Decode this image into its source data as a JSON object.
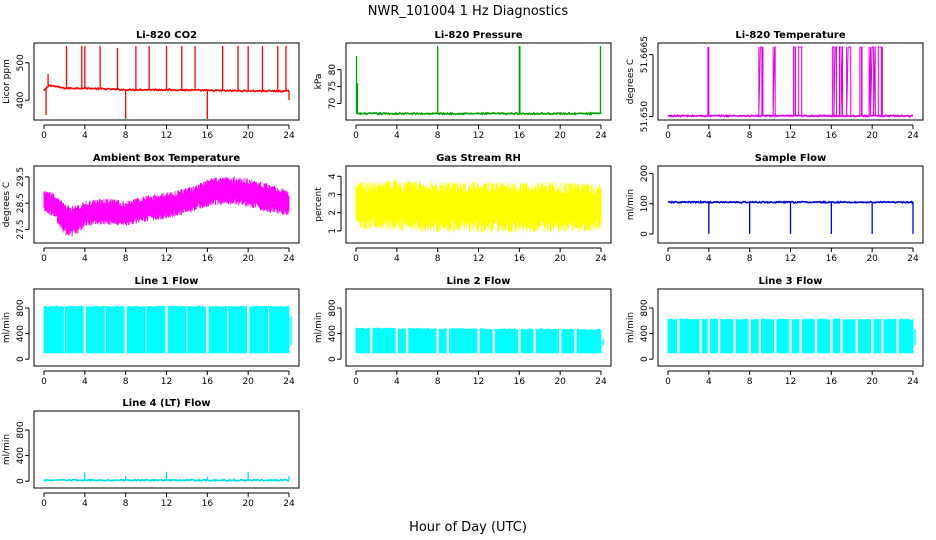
{
  "title": "NWR_101004  1 Hz Diagnostics",
  "x_axis_title": "Hour of Day (UTC)",
  "chart_data": [
    {
      "type": "line",
      "title": "Li-820 CO2",
      "ylabel": "Licor ppm",
      "color": "#ff0000",
      "xlim": [
        0,
        24
      ],
      "ylim": [
        355,
        545
      ],
      "xticks": [
        "0",
        "4",
        "8",
        "12",
        "16",
        "20",
        "24"
      ],
      "yticks": [
        400,
        500
      ],
      "ytick_labels": [
        "400",
        "500"
      ],
      "base": [
        [
          0,
          425
        ],
        [
          0.5,
          440
        ],
        [
          2,
          432
        ],
        [
          4,
          432
        ],
        [
          8,
          428
        ],
        [
          12,
          428
        ],
        [
          16,
          426
        ],
        [
          20,
          425
        ],
        [
          24,
          424
        ]
      ],
      "spikes": [
        [
          0.2,
          360
        ],
        [
          0.4,
          470
        ],
        [
          2.2,
          545
        ],
        [
          3.7,
          545
        ],
        [
          4.0,
          545
        ],
        [
          5.5,
          545
        ],
        [
          7.2,
          540
        ],
        [
          8.0,
          350
        ],
        [
          9.0,
          545
        ],
        [
          10.3,
          545
        ],
        [
          12.0,
          545
        ],
        [
          13.5,
          545
        ],
        [
          14.8,
          545
        ],
        [
          16.0,
          345
        ],
        [
          17.5,
          545
        ],
        [
          19.0,
          545
        ],
        [
          20.0,
          545
        ],
        [
          21.4,
          545
        ],
        [
          22.9,
          545
        ],
        [
          23.7,
          545
        ],
        [
          24.0,
          400
        ]
      ]
    },
    {
      "type": "line",
      "title": "Li-820 Pressure",
      "ylabel": "kPa",
      "color": "#00a000",
      "xlim": [
        0,
        24
      ],
      "ylim": [
        66,
        87
      ],
      "xticks": [
        "0",
        "4",
        "8",
        "12",
        "16",
        "20",
        "24"
      ],
      "yticks": [
        70,
        75,
        80
      ],
      "ytick_labels": [
        "70",
        "75",
        "80"
      ],
      "base": [
        [
          0,
          67
        ],
        [
          24,
          67
        ]
      ],
      "spikes": [
        [
          0.05,
          84
        ],
        [
          0.15,
          76
        ],
        [
          8.0,
          87
        ],
        [
          16.0,
          87
        ],
        [
          16.05,
          87
        ],
        [
          23.95,
          87
        ]
      ]
    },
    {
      "type": "line",
      "title": "Li-820 Temperature",
      "ylabel": "degrees C",
      "color": "#e000e0",
      "xlim": [
        0,
        24
      ],
      "ylim": [
        51.6499,
        51.6688
      ],
      "xticks": [
        "0",
        "4",
        "8",
        "12",
        "16",
        "20",
        "24"
      ],
      "yticks": [
        51.65,
        51.6665
      ],
      "ytick_labels": [
        "51.650",
        "51.6665"
      ],
      "base": [
        [
          0,
          51.6502
        ],
        [
          24,
          51.6502
        ]
      ],
      "pulses": [
        [
          3.9,
          4.0
        ],
        [
          8.9,
          9.3
        ],
        [
          10.3,
          10.5
        ],
        [
          12.3,
          12.5
        ],
        [
          12.8,
          13.1
        ],
        [
          16.1,
          16.5
        ],
        [
          16.8,
          17.1
        ],
        [
          17.5,
          17.9
        ],
        [
          18.8,
          19.0
        ],
        [
          19.7,
          20.3
        ],
        [
          20.6,
          21.0
        ]
      ]
    },
    {
      "type": "line",
      "title": "Ambient Box Temperature",
      "ylabel": "degrees C",
      "color": "#ff00ff",
      "xlim": [
        0,
        24
      ],
      "ylim": [
        27.1,
        29.8
      ],
      "xticks": [
        "0",
        "4",
        "8",
        "12",
        "16",
        "20",
        "24"
      ],
      "yticks": [
        27.5,
        28.5,
        29.5
      ],
      "ytick_labels": [
        "27.5",
        "28.5",
        "29.5"
      ],
      "band": [
        [
          0,
          28.6,
          0.4
        ],
        [
          1,
          28.4,
          0.5
        ],
        [
          2,
          27.9,
          0.6
        ],
        [
          3,
          27.8,
          0.6
        ],
        [
          4,
          28.1,
          0.5
        ],
        [
          6,
          28.2,
          0.5
        ],
        [
          8,
          28.1,
          0.5
        ],
        [
          10,
          28.3,
          0.5
        ],
        [
          12,
          28.4,
          0.5
        ],
        [
          14,
          28.6,
          0.5
        ],
        [
          15,
          28.7,
          0.5
        ],
        [
          16,
          28.9,
          0.55
        ],
        [
          18,
          29.0,
          0.55
        ],
        [
          20,
          28.9,
          0.55
        ],
        [
          22,
          28.7,
          0.55
        ],
        [
          24,
          28.5,
          0.5
        ]
      ]
    },
    {
      "type": "line",
      "title": "Gas Stream RH",
      "ylabel": "percent",
      "color": "#ffff00",
      "xlim": [
        0,
        24
      ],
      "ylim": [
        0.5,
        4.4
      ],
      "xticks": [
        "0",
        "4",
        "8",
        "12",
        "16",
        "20",
        "24"
      ],
      "yticks": [
        1,
        2,
        3,
        4
      ],
      "ytick_labels": [
        "1",
        "2",
        "3",
        "4"
      ],
      "band": [
        [
          0,
          2.4,
          1.3
        ],
        [
          4,
          2.4,
          1.4
        ],
        [
          8,
          2.3,
          1.4
        ],
        [
          12,
          2.3,
          1.4
        ],
        [
          16,
          2.3,
          1.4
        ],
        [
          20,
          2.3,
          1.4
        ],
        [
          24,
          2.3,
          1.3
        ]
      ]
    },
    {
      "type": "line",
      "title": "Sample Flow",
      "ylabel": "ml/min",
      "color": "#0000e0",
      "xlim": [
        0,
        24
      ],
      "ylim": [
        -20,
        215
      ],
      "xticks": [
        "0",
        "4",
        "8",
        "12",
        "16",
        "20",
        "24"
      ],
      "yticks": [
        0,
        100,
        200
      ],
      "ytick_labels": [
        "0",
        "100",
        "200"
      ],
      "base": [
        [
          0,
          105
        ],
        [
          24,
          105
        ]
      ],
      "spikes": [
        [
          4.0,
          0
        ],
        [
          8.0,
          0
        ],
        [
          12.0,
          0
        ],
        [
          16.0,
          0
        ],
        [
          20.0,
          0
        ],
        [
          24.0,
          0
        ]
      ]
    },
    {
      "type": "line",
      "title": "Line 1 Flow",
      "ylabel": "ml/min",
      "color": "#00ffff",
      "xlim": [
        0,
        24
      ],
      "ylim": [
        -60,
        1050
      ],
      "xticks": [
        "0",
        "4",
        "8",
        "12",
        "16",
        "20",
        "24"
      ],
      "yticks": [
        0,
        400,
        800
      ],
      "ytick_labels": [
        "0",
        "400",
        "800"
      ],
      "fill": [
        [
          0,
          100,
          820
        ],
        [
          24,
          100,
          820
        ]
      ],
      "gaps": [
        4.0,
        8.0,
        12.0,
        16.0,
        20.0
      ],
      "lines": [
        2.0,
        6.0,
        10.0,
        14.0,
        18.0,
        22.0
      ]
    },
    {
      "type": "line",
      "title": "Line 2 Flow",
      "ylabel": "ml/min",
      "color": "#00ffff",
      "xlim": [
        0,
        24
      ],
      "ylim": [
        -60,
        1050
      ],
      "xticks": [
        "0",
        "4",
        "8",
        "12",
        "16",
        "20",
        "24"
      ],
      "yticks": [
        0,
        400,
        800
      ],
      "ytick_labels": [
        "0",
        "400",
        "800"
      ],
      "fill": [
        [
          0,
          100,
          480
        ],
        [
          24,
          100,
          460
        ]
      ],
      "gaps": [
        1.5,
        4.0,
        5.0,
        8.0,
        9.0,
        12.0,
        13.5,
        16.0,
        17.5,
        20.0,
        21.5
      ],
      "lines": []
    },
    {
      "type": "line",
      "title": "Line 3 Flow",
      "ylabel": "ml/min",
      "color": "#00ffff",
      "xlim": [
        0,
        24
      ],
      "ylim": [
        -60,
        1050
      ],
      "xticks": [
        "0",
        "4",
        "8",
        "12",
        "16",
        "20",
        "24"
      ],
      "yticks": [
        0,
        400,
        800
      ],
      "ytick_labels": [
        "0",
        "400",
        "800"
      ],
      "fill": [
        [
          0,
          100,
          620
        ],
        [
          24,
          100,
          620
        ]
      ],
      "gaps": [
        1.0,
        3.2,
        4.0,
        5.0,
        6.5,
        8.0,
        9.0,
        10.5,
        12.0,
        13.0,
        14.5,
        16.0,
        17.0,
        18.5,
        20.0,
        21.0,
        22.5
      ],
      "lines": []
    },
    {
      "type": "line",
      "title": "Line 4 (LT) Flow",
      "ylabel": "ml/min",
      "color": "#00e0e0",
      "xlim": [
        0,
        24
      ],
      "ylim": [
        -60,
        1050
      ],
      "xticks": [
        "0",
        "4",
        "8",
        "12",
        "16",
        "20",
        "24"
      ],
      "yticks": [
        0,
        400,
        800
      ],
      "ytick_labels": [
        "0",
        "400",
        "800"
      ],
      "base": [
        [
          0,
          15
        ],
        [
          24,
          15
        ]
      ],
      "spikes": [
        [
          4.0,
          140
        ],
        [
          8.0,
          75
        ],
        [
          12.0,
          145
        ],
        [
          16.0,
          70
        ],
        [
          20.0,
          145
        ],
        [
          24.0,
          80
        ]
      ]
    }
  ]
}
